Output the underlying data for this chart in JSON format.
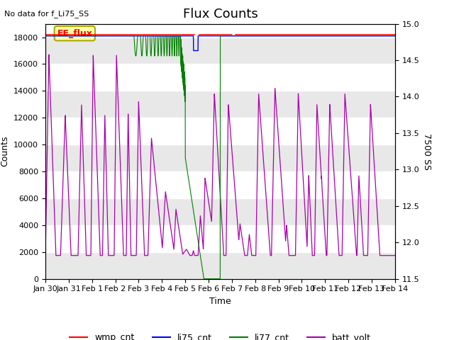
{
  "title": "Flux Counts",
  "no_data_text": "No data for f_Li75_SS",
  "xlabel": "Time",
  "ylabel_left": "Counts",
  "ylabel_right": "7500 SS",
  "ylim_left": [
    0,
    19000
  ],
  "ylim_right": [
    11.5,
    15.0
  ],
  "yticks_right": [
    11.5,
    12.0,
    12.5,
    13.0,
    13.5,
    14.0,
    14.5,
    15.0
  ],
  "yticks_left": [
    0,
    2000,
    4000,
    6000,
    8000,
    10000,
    12000,
    14000,
    16000,
    18000
  ],
  "xtick_labels": [
    "Jan 30",
    "Jan 31",
    "Feb 1",
    "Feb 2",
    "Feb 3",
    "Feb 4",
    "Feb 5",
    "Feb 6",
    "Feb 7",
    "Feb 8",
    "Feb 9",
    "Feb 10",
    "Feb 11",
    "Feb 12",
    "Feb 13",
    "Feb 14"
  ],
  "ee_flux_text": "EE_flux",
  "legend_entries": [
    "wmp_cnt",
    "li75_cnt",
    "li77_cnt",
    "batt_volt"
  ],
  "legend_colors": [
    "red",
    "blue",
    "green",
    "purple"
  ],
  "background_color": "#ffffff",
  "band_color": "#e8e8e8",
  "title_fontsize": 13,
  "label_fontsize": 9,
  "tick_fontsize": 8
}
